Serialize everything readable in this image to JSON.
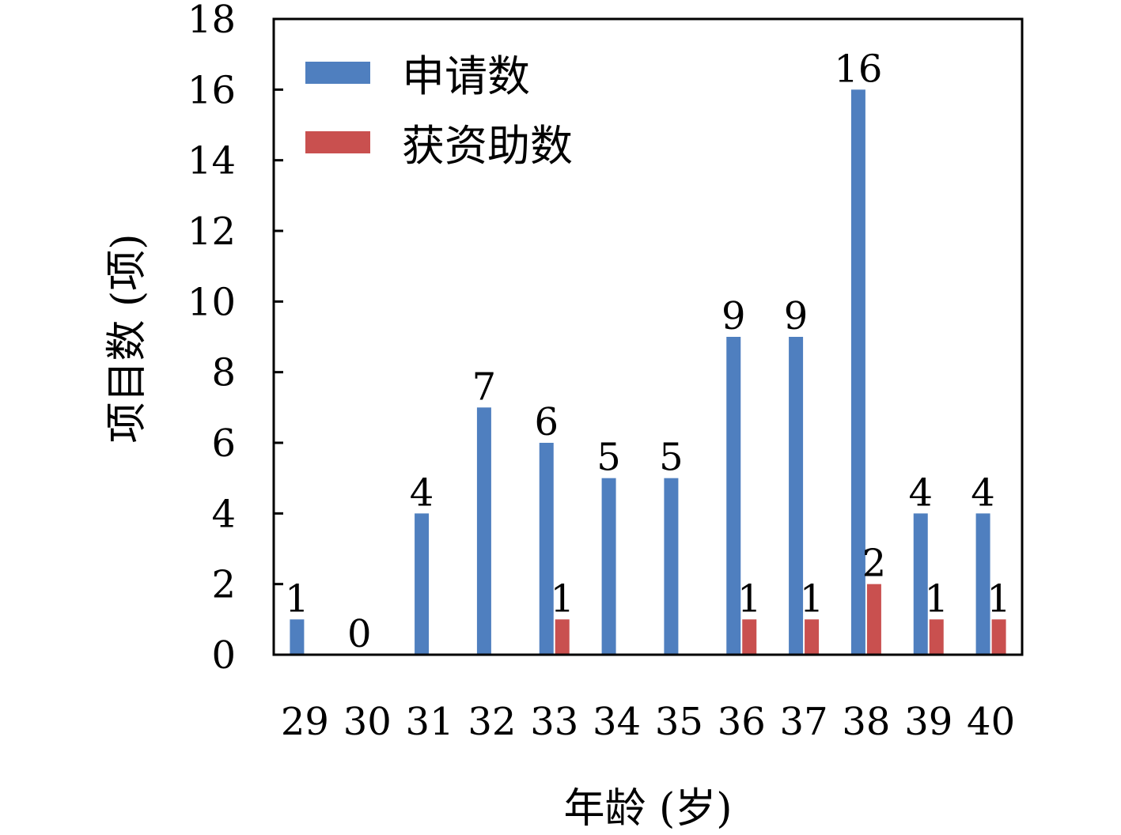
{
  "chart_data": {
    "type": "bar",
    "categories": [
      "29",
      "30",
      "31",
      "32",
      "33",
      "34",
      "35",
      "36",
      "37",
      "38",
      "39",
      "40"
    ],
    "series": [
      {
        "name": "申请数",
        "values": [
          1,
          0,
          4,
          7,
          6,
          5,
          5,
          9,
          9,
          16,
          4,
          4
        ],
        "color": "#4f7fbf"
      },
      {
        "name": "获资助数",
        "values": [
          0,
          0,
          0,
          0,
          1,
          0,
          0,
          1,
          1,
          2,
          1,
          1
        ],
        "color": "#c9504f"
      }
    ],
    "xlabel": "年龄 (岁)",
    "ylabel": "项目数 (项)",
    "ylim": [
      0,
      18
    ],
    "yticks": [
      0,
      2,
      4,
      6,
      8,
      10,
      12,
      14,
      16,
      18
    ],
    "grid": false,
    "legend_position": "top-left"
  }
}
